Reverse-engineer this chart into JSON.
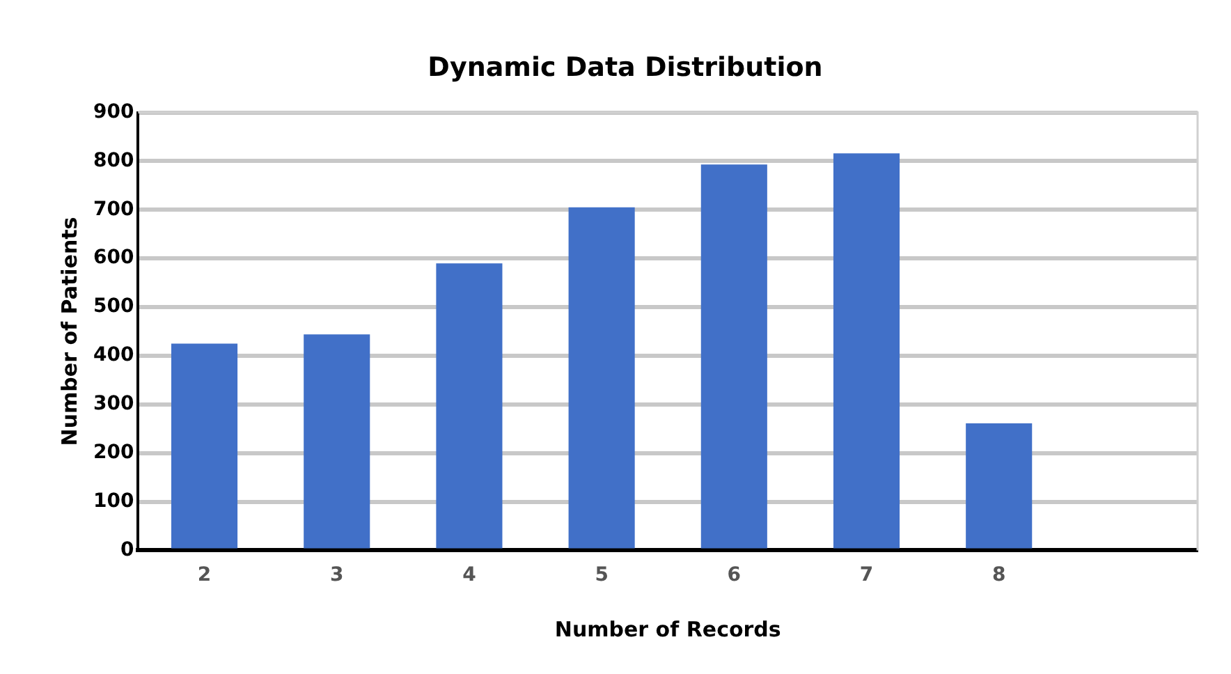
{
  "chart_data": {
    "type": "bar",
    "title": "Dynamic Data Distribution",
    "xlabel": "Number of Records",
    "ylabel": "Number of Patients",
    "categories": [
      "2",
      "3",
      "4",
      "5",
      "6",
      "7",
      "8",
      null
    ],
    "values": [
      425,
      444,
      590,
      705,
      793,
      816,
      261,
      null
    ],
    "color": "#4170c8",
    "ylim": [
      0,
      900
    ],
    "yticks": [
      0,
      100,
      200,
      300,
      400,
      500,
      600,
      700,
      800,
      900
    ],
    "grid": "y"
  }
}
